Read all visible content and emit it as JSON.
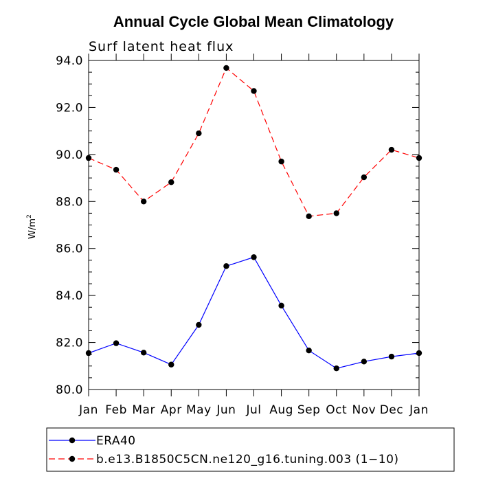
{
  "chart_data": {
    "type": "line",
    "title": "Annual Cycle Global Mean Climatology",
    "subtitle": "Surf latent heat flux",
    "ylabel_base": "W/m",
    "ylabel_sup": "2",
    "categories": [
      "Jan",
      "Feb",
      "Mar",
      "Apr",
      "May",
      "Jun",
      "Jul",
      "Aug",
      "Sep",
      "Oct",
      "Nov",
      "Dec",
      "Jan"
    ],
    "ylim": [
      80.0,
      94.0
    ],
    "yticks": [
      "80.0",
      "82.0",
      "84.0",
      "86.0",
      "88.0",
      "90.0",
      "92.0",
      "94.0"
    ],
    "series": [
      {
        "name": "ERA40",
        "color": "#0000ff",
        "dash": "solid",
        "values": [
          81.55,
          81.97,
          81.57,
          81.06,
          82.75,
          85.25,
          85.63,
          83.57,
          81.66,
          80.9,
          81.19,
          81.4,
          81.55
        ]
      },
      {
        "name": "b.e13.B1850C5CN.ne120_g16.tuning.003 (1−10)",
        "color": "#ff0000",
        "dash": "dashed",
        "values": [
          89.85,
          89.35,
          88.0,
          88.82,
          90.9,
          93.68,
          92.7,
          89.7,
          87.37,
          87.5,
          89.03,
          90.2,
          89.85
        ]
      }
    ]
  }
}
